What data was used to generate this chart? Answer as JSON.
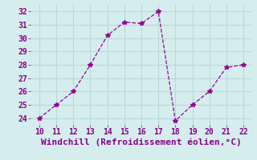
{
  "x": [
    10,
    11,
    12,
    13,
    14,
    15,
    16,
    17,
    18,
    19,
    20,
    21,
    22
  ],
  "y": [
    24,
    25,
    26,
    28,
    30.2,
    31.2,
    31.1,
    32,
    23.8,
    25,
    26,
    27.8,
    28
  ],
  "line_color": "#990099",
  "marker": "*",
  "marker_size": 4,
  "xlabel": "Windchill (Refroidissement éolien,°C)",
  "xlim": [
    9.5,
    22.5
  ],
  "ylim": [
    23.5,
    32.5
  ],
  "xticks": [
    10,
    11,
    12,
    13,
    14,
    15,
    16,
    17,
    18,
    19,
    20,
    21,
    22
  ],
  "yticks": [
    24,
    25,
    26,
    27,
    28,
    29,
    30,
    31,
    32
  ],
  "bg_color": "#d5eeed",
  "grid_color": "#b8d8d8",
  "tick_color": "#880088",
  "label_color": "#880088",
  "tick_fontsize": 7,
  "xlabel_fontsize": 8
}
